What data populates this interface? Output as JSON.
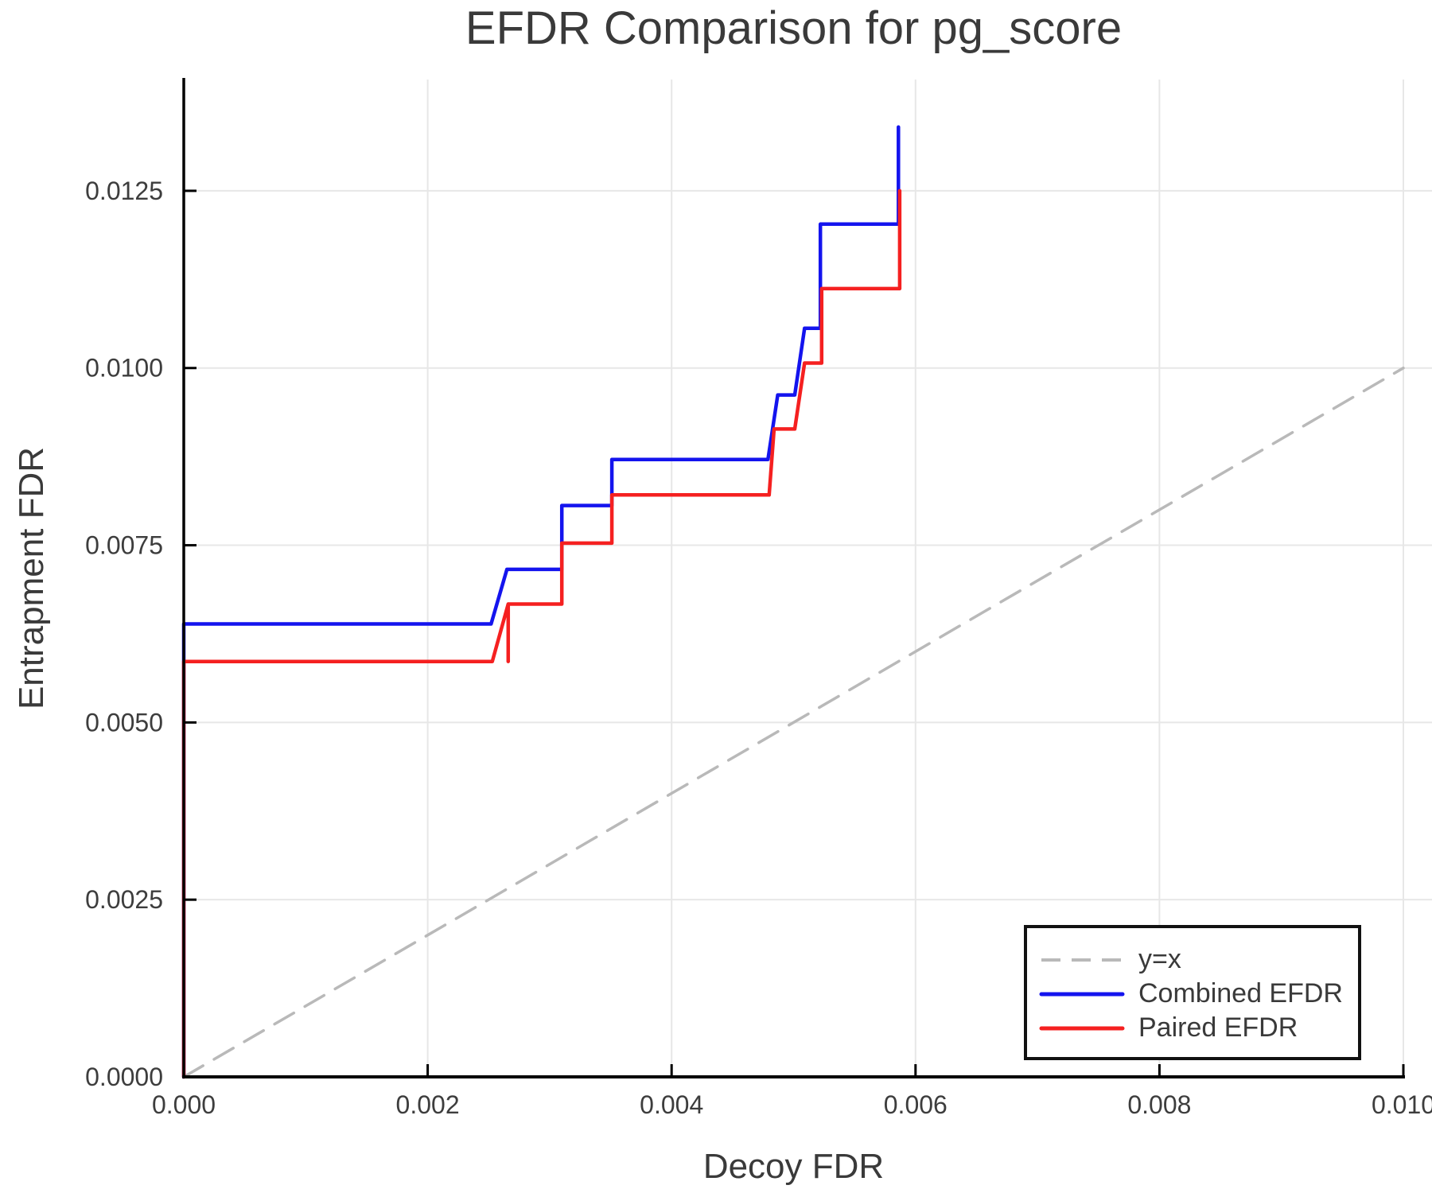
{
  "chart_data": {
    "type": "line",
    "title": "EFDR Comparison for pg_score",
    "xlabel": "Decoy FDR",
    "ylabel": "Entrapment FDR",
    "xlim": [
      0.0,
      0.01
    ],
    "ylim": [
      0.0,
      0.01407
    ],
    "grid": true,
    "legend_position": "lower right",
    "x_ticks": {
      "values": [
        0.0,
        0.002,
        0.004,
        0.006,
        0.008,
        0.01
      ],
      "labels": [
        "0.000",
        "0.002",
        "0.004",
        "0.006",
        "0.008",
        "0.010"
      ]
    },
    "y_ticks": {
      "values": [
        0.0,
        0.0025,
        0.005,
        0.0075,
        0.01,
        0.0125
      ],
      "labels": [
        "0.0000",
        "0.0025",
        "0.0050",
        "0.0075",
        "0.0100",
        "0.0125"
      ]
    },
    "series": [
      {
        "name": "y=x",
        "style": "dashed",
        "color": "#b9b9b9",
        "width": 3.5,
        "points": [
          [
            0.0,
            0.0
          ],
          [
            0.01,
            0.01
          ]
        ]
      },
      {
        "name": "Combined EFDR",
        "style": "solid",
        "color": "#1414ee",
        "width": 4.5,
        "points": [
          [
            0.0,
            0.0
          ],
          [
            0.0,
            0.00639
          ],
          [
            0.00252,
            0.00639
          ],
          [
            0.00265,
            0.00716
          ],
          [
            0.0031,
            0.00716
          ],
          [
            0.0031,
            0.00806
          ],
          [
            0.00351,
            0.00806
          ],
          [
            0.00351,
            0.00871
          ],
          [
            0.00479,
            0.00871
          ],
          [
            0.00487,
            0.00962
          ],
          [
            0.00501,
            0.00962
          ],
          [
            0.00509,
            0.01056
          ],
          [
            0.00522,
            0.01056
          ],
          [
            0.00522,
            0.01203
          ],
          [
            0.00586,
            0.01203
          ],
          [
            0.00586,
            0.0134
          ]
        ]
      },
      {
        "name": "Paired EFDR",
        "style": "solid",
        "color": "#f52020",
        "width": 4.5,
        "points": [
          [
            0.0,
            0.0
          ],
          [
            0.0,
            0.00586
          ],
          [
            0.00253,
            0.00586
          ],
          [
            0.00266,
            0.00667
          ],
          [
            0.00266,
            0.00586
          ],
          [
            0.00266,
            0.00667
          ],
          [
            0.0031,
            0.00667
          ],
          [
            0.0031,
            0.00753
          ],
          [
            0.00351,
            0.00753
          ],
          [
            0.00351,
            0.00821
          ],
          [
            0.0048,
            0.00821
          ],
          [
            0.00484,
            0.00914
          ],
          [
            0.00501,
            0.00914
          ],
          [
            0.00509,
            0.01007
          ],
          [
            0.00523,
            0.01007
          ],
          [
            0.00523,
            0.01112
          ],
          [
            0.00587,
            0.01112
          ],
          [
            0.00587,
            0.0125
          ]
        ]
      }
    ],
    "colors": {
      "grid": "#e7e7e7",
      "spine": "#000000",
      "text": "#3d3d3d"
    }
  }
}
